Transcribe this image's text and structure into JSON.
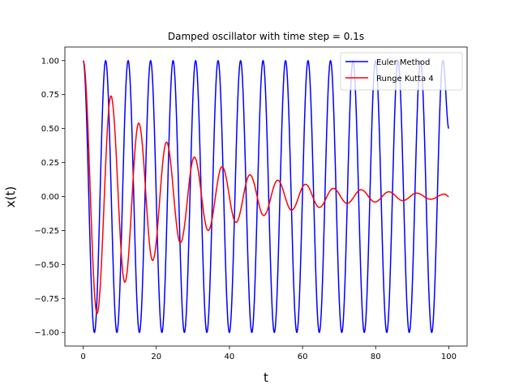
{
  "chart_data": {
    "type": "line",
    "title": "Damped oscillator with time step = 0.1s",
    "xlabel": "t",
    "ylabel": "x(t)",
    "xlim": [
      -5,
      105
    ],
    "ylim": [
      -1.1,
      1.1
    ],
    "xticks": [
      0,
      20,
      40,
      60,
      80,
      100
    ],
    "xtick_labels": [
      "0",
      "20",
      "40",
      "60",
      "80",
      "100"
    ],
    "yticks": [
      1.0,
      0.75,
      0.5,
      0.25,
      0.0,
      -0.25,
      -0.5,
      -0.75,
      -1.0
    ],
    "ytick_labels": [
      "1.00",
      "0.75",
      "0.50",
      "0.25",
      "0.00",
      "−0.25",
      "−0.50",
      "−0.75",
      "−1.00"
    ],
    "grid": false,
    "legend_position": "top-right",
    "t_range": [
      0,
      100
    ],
    "time_step": 0.1,
    "series": [
      {
        "name": "Euler Method",
        "color": "#0000ff",
        "amplitude": 1.0,
        "period": 6.15,
        "x": [
          0,
          3.08,
          6.15,
          9.23,
          12.3,
          15.38,
          18.45,
          21.53,
          24.6,
          27.68,
          30.75,
          33.83,
          36.9,
          39.98,
          43.05,
          46.13,
          49.2,
          52.28,
          55.35,
          58.43,
          61.5,
          64.58,
          67.65,
          70.73,
          73.8,
          76.88,
          79.95,
          83.03,
          86.1,
          89.18,
          92.25,
          95.33,
          98.4,
          100
        ],
        "y": [
          1.0,
          -1.0,
          1.0,
          -1.0,
          1.0,
          -1.0,
          1.0,
          -1.0,
          1.0,
          -1.0,
          1.0,
          -1.0,
          1.0,
          -1.0,
          1.0,
          -1.0,
          1.0,
          -1.0,
          1.0,
          -1.0,
          1.0,
          -1.0,
          1.0,
          -1.0,
          1.0,
          -1.0,
          1.0,
          -1.0,
          1.0,
          -1.0,
          1.0,
          -1.0,
          1.0,
          0.5
        ]
      },
      {
        "name": "Runge Kutta 4",
        "color": "#ff0000",
        "x": [
          0,
          3.8,
          7.6,
          11.4,
          15.2,
          19.0,
          22.8,
          26.6,
          30.4,
          34.2,
          38.0,
          41.8,
          45.6,
          49.4,
          53.2,
          57.0,
          60.8,
          64.6,
          68.4,
          72.2,
          76.0,
          79.8,
          83.6,
          87.4,
          91.2,
          95.0,
          98.8,
          100
        ],
        "y": [
          1.0,
          -0.86,
          0.74,
          -0.63,
          0.54,
          -0.47,
          0.4,
          -0.34,
          0.29,
          -0.25,
          0.22,
          -0.19,
          0.16,
          -0.14,
          0.12,
          -0.1,
          0.09,
          -0.08,
          0.06,
          -0.05,
          0.05,
          -0.04,
          0.035,
          -0.03,
          0.025,
          -0.02,
          0.018,
          0.0
        ]
      }
    ]
  }
}
